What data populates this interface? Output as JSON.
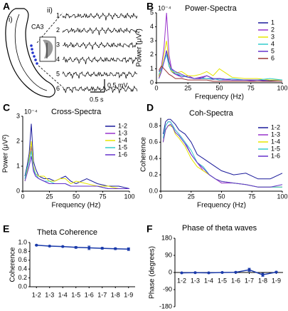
{
  "panel_a": {
    "panel": "A",
    "label_i": "i)",
    "label_ii": "ii)",
    "region": "CA3",
    "trace_labels": [
      "1",
      "2",
      "3",
      "4",
      "5",
      "6"
    ],
    "scale_v": "0.5 mV",
    "scale_t": "0.5 s"
  },
  "chart_data": [
    {
      "type": "line",
      "panel": "B",
      "title": "Power-Spectra",
      "y_exponent": "10⁻⁴",
      "xlabel": "Frequency (Hz)",
      "ylabel": "Power (μV²)",
      "x": [
        2,
        4,
        6,
        8,
        10,
        12,
        15,
        20,
        25,
        30,
        35,
        40,
        45,
        50,
        60,
        70,
        80,
        90,
        100
      ],
      "xlim": [
        0,
        100
      ],
      "xticks": [
        0,
        25,
        50,
        75,
        100
      ],
      "ylim": [
        0,
        5
      ],
      "yticks": [
        0,
        1,
        2,
        3,
        4,
        5
      ],
      "series": [
        {
          "name": "1",
          "color": "#1a1a9a",
          "values": [
            0.8,
            1.0,
            1.5,
            2.3,
            1.2,
            0.8,
            0.6,
            0.5,
            0.4,
            0.3,
            0.35,
            0.3,
            0.25,
            0.3,
            0.2,
            0.2,
            0.2,
            0.15,
            0.2
          ]
        },
        {
          "name": "2",
          "color": "#9933cc",
          "values": [
            0.5,
            1.2,
            2.5,
            5.0,
            2.0,
            1.0,
            0.6,
            0.4,
            0.5,
            0.3,
            0.4,
            0.5,
            0.3,
            0.2,
            0.2,
            0.2,
            0.1,
            0.1,
            0.1
          ]
        },
        {
          "name": "3",
          "color": "#e6e600",
          "values": [
            0.4,
            1.0,
            2.0,
            3.0,
            1.5,
            0.8,
            0.7,
            0.8,
            0.5,
            0.5,
            0.6,
            0.8,
            0.5,
            1.0,
            0.4,
            0.3,
            0.3,
            0.2,
            0.2
          ]
        },
        {
          "name": "4",
          "color": "#33cccc",
          "values": [
            0.6,
            1.0,
            1.5,
            2.0,
            1.2,
            0.9,
            0.7,
            0.5,
            0.4,
            0.3,
            0.3,
            0.3,
            0.3,
            0.2,
            0.3,
            0.2,
            0.2,
            0.3,
            0.2
          ]
        },
        {
          "name": "5",
          "color": "#6633cc",
          "values": [
            0.3,
            0.8,
            1.5,
            2.3,
            1.5,
            1.0,
            0.8,
            0.6,
            0.4,
            0.3,
            0.3,
            0.5,
            0.3,
            0.3,
            0.2,
            0.2,
            0.2,
            0.1,
            0.1
          ]
        },
        {
          "name": "6",
          "color": "#993333",
          "values": [
            0.9,
            1.2,
            1.0,
            0.8,
            0.6,
            0.5,
            0.3,
            0.3,
            0.2,
            0.2,
            0.2,
            0.2,
            0.1,
            0.1,
            0.1,
            0.1,
            0.1,
            0.1,
            0.1
          ]
        }
      ]
    },
    {
      "type": "line",
      "panel": "C",
      "title": "Cross-Spectra",
      "y_exponent": "10⁻⁴",
      "xlabel": "Frequency (Hz)",
      "ylabel": "Power (μV²)",
      "x": [
        2,
        4,
        6,
        8,
        10,
        12,
        15,
        20,
        25,
        30,
        35,
        40,
        45,
        50,
        60,
        70,
        80,
        90,
        100
      ],
      "xlim": [
        0,
        100
      ],
      "xticks": [
        0,
        25,
        50,
        75,
        100
      ],
      "ylim": [
        0,
        3
      ],
      "yticks": [
        0,
        1,
        2,
        3
      ],
      "series": [
        {
          "name": "1-2",
          "color": "#1a1a9a",
          "values": [
            0.6,
            1.0,
            1.5,
            2.7,
            1.2,
            0.9,
            0.6,
            0.5,
            0.5,
            0.4,
            0.5,
            0.6,
            0.4,
            0.3,
            0.5,
            0.3,
            0.2,
            0.2,
            0.1
          ]
        },
        {
          "name": "1-3",
          "color": "#9933cc",
          "values": [
            0.5,
            0.8,
            1.2,
            1.8,
            0.9,
            0.6,
            0.5,
            0.4,
            0.3,
            0.3,
            0.3,
            0.3,
            0.2,
            0.2,
            0.2,
            0.2,
            0.1,
            0.1,
            0.1
          ]
        },
        {
          "name": "1-4",
          "color": "#e6e600",
          "values": [
            0.4,
            0.8,
            1.3,
            2.0,
            1.0,
            0.7,
            0.6,
            0.6,
            0.4,
            0.4,
            0.5,
            0.5,
            0.3,
            0.4,
            0.3,
            0.2,
            0.2,
            0.1,
            0.1
          ]
        },
        {
          "name": "1-5",
          "color": "#33cccc",
          "values": [
            0.5,
            0.9,
            1.2,
            1.6,
            0.9,
            0.7,
            0.5,
            0.4,
            0.4,
            0.3,
            0.3,
            0.3,
            0.2,
            0.2,
            0.2,
            0.2,
            0.1,
            0.1,
            0.1
          ]
        },
        {
          "name": "1-6",
          "color": "#6633cc",
          "values": [
            0.4,
            0.7,
            1.0,
            1.4,
            0.8,
            0.6,
            0.5,
            0.4,
            0.3,
            0.3,
            0.3,
            0.3,
            0.2,
            0.2,
            0.2,
            0.2,
            0.1,
            0.1,
            0.1
          ]
        }
      ]
    },
    {
      "type": "line",
      "panel": "D",
      "title": "Coh-Spectra",
      "xlabel": "Frequency (Hz)",
      "ylabel": "Coherence",
      "x": [
        2,
        4,
        6,
        8,
        10,
        12,
        15,
        20,
        25,
        30,
        35,
        40,
        45,
        50,
        60,
        70,
        80,
        90,
        100
      ],
      "xlim": [
        0,
        100
      ],
      "xticks": [
        0,
        25,
        50,
        75,
        100
      ],
      "ylim": [
        0,
        0.9
      ],
      "yticks": [
        {
          "value": 0,
          "label": "0.0"
        },
        0.2,
        0.4,
        0.6,
        0.8
      ],
      "series": [
        {
          "name": "1-2",
          "color": "#1a1a9a",
          "values": [
            0.7,
            0.85,
            0.88,
            0.88,
            0.85,
            0.82,
            0.75,
            0.7,
            0.6,
            0.45,
            0.4,
            0.35,
            0.3,
            0.25,
            0.2,
            0.22,
            0.15,
            0.15,
            0.22
          ]
        },
        {
          "name": "1-3",
          "color": "#9933cc",
          "values": [
            0.6,
            0.8,
            0.85,
            0.85,
            0.8,
            0.75,
            0.7,
            0.6,
            0.45,
            0.35,
            0.25,
            0.2,
            0.15,
            0.1,
            0.1,
            0.08,
            0.05,
            0.05,
            0.05
          ]
        },
        {
          "name": "1-4",
          "color": "#e6e600",
          "values": [
            0.6,
            0.75,
            0.8,
            0.8,
            0.78,
            0.7,
            0.65,
            0.55,
            0.4,
            0.3,
            0.25,
            0.2,
            0.15,
            0.12,
            0.1,
            0.08,
            0.05,
            0.05,
            0.05
          ]
        },
        {
          "name": "1-5",
          "color": "#33cccc",
          "values": [
            0.65,
            0.8,
            0.85,
            0.85,
            0.8,
            0.75,
            0.7,
            0.6,
            0.5,
            0.35,
            0.3,
            0.2,
            0.15,
            0.12,
            0.1,
            0.08,
            0.05,
            0.05,
            0.05
          ]
        },
        {
          "name": "1-6",
          "color": "#6633cc",
          "values": [
            0.6,
            0.75,
            0.8,
            0.82,
            0.78,
            0.72,
            0.68,
            0.58,
            0.45,
            0.35,
            0.28,
            0.2,
            0.15,
            0.12,
            0.1,
            0.08,
            0.05,
            0.05,
            0.08
          ]
        }
      ]
    },
    {
      "type": "errorbar",
      "panel": "E",
      "title": "Theta Coherence",
      "ylabel": "Coherence",
      "color": "#1a3aaa",
      "categories": [
        "1-2",
        "1-3",
        "1-4",
        "1-5",
        "1-6",
        "1-7",
        "1-8",
        "1-9"
      ],
      "values": [
        0.94,
        0.92,
        0.91,
        0.89,
        0.88,
        0.87,
        0.86,
        0.85
      ],
      "errors": [
        0.01,
        0.01,
        0.01,
        0.02,
        0.04,
        0.02,
        0.02,
        0.03
      ],
      "ylim": [
        0,
        1
      ],
      "yticks": [
        {
          "value": 0,
          "label": "0.0"
        },
        0.2,
        0.4,
        0.6,
        0.8,
        {
          "value": 1,
          "label": "1.0"
        }
      ]
    },
    {
      "type": "errorbar",
      "panel": "F",
      "title": "Phase of theta waves",
      "ylabel": "Phase (degrees)",
      "color": "#1a3aaa",
      "categories": [
        "1-2",
        "1-3",
        "1-4",
        "1-5",
        "1-6",
        "1-7",
        "1-8",
        "1-9"
      ],
      "values": [
        -2,
        -1,
        -2,
        0,
        1,
        14,
        -12,
        2
      ],
      "errors": [
        2,
        2,
        2,
        2,
        3,
        8,
        8,
        4
      ],
      "ylim": [
        -180,
        180
      ],
      "yticks": [
        -180,
        -90,
        0,
        90,
        180
      ]
    }
  ]
}
